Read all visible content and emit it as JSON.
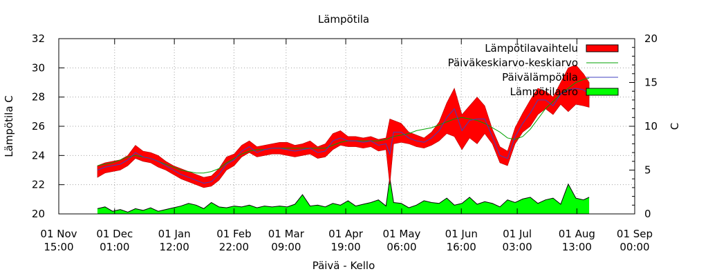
{
  "chart_data": {
    "type": "area",
    "title": "Lämpötila",
    "xlabel": "Päivä - Kello",
    "ylabel": "Lämpötila C",
    "y2label": "C",
    "grid": true,
    "legend": "top-right",
    "ylim": [
      20,
      32
    ],
    "y2lim": [
      0,
      20
    ],
    "xlim": [
      "2017-11-01 15:00",
      "2018-09-01 00:00"
    ],
    "y_ticks": [
      "20",
      "22",
      "24",
      "26",
      "28",
      "30",
      "32"
    ],
    "y2_ticks": [
      "0",
      "5",
      "10",
      "15",
      "20"
    ],
    "x_ticks": [
      {
        "date": "2017-11-01 15:00",
        "line1": "01 Nov",
        "line2": "15:00"
      },
      {
        "date": "2017-12-01 01:00",
        "line1": "01 Dec",
        "line2": "01:00"
      },
      {
        "date": "2018-01-01 12:00",
        "line1": "01 Jan",
        "line2": "12:00"
      },
      {
        "date": "2018-02-01 22:00",
        "line1": "01 Feb",
        "line2": "22:00"
      },
      {
        "date": "2018-03-01 09:00",
        "line1": "01 Mar",
        "line2": "09:00"
      },
      {
        "date": "2018-04-01 19:00",
        "line1": "01 Apr",
        "line2": "19:00"
      },
      {
        "date": "2018-05-01 06:00",
        "line1": "01 May",
        "line2": "06:00"
      },
      {
        "date": "2018-06-01 16:00",
        "line1": "01 Jun",
        "line2": "16:00"
      },
      {
        "date": "2018-07-01 03:00",
        "line1": "01 Jul",
        "line2": "03:00"
      },
      {
        "date": "2018-08-01 13:00",
        "line1": "01 Aug",
        "line2": "13:00"
      },
      {
        "date": "2018-09-01 00:00",
        "line1": "01 Sep",
        "line2": "00:00"
      }
    ],
    "series": [
      {
        "name": "Lämpötilavaihtelu",
        "kind": "band",
        "axis": "y",
        "color": "#ff0000"
      },
      {
        "name": "Päiväkeskiarvo-keskiarvo",
        "kind": "line",
        "axis": "y",
        "color": "#00a000"
      },
      {
        "name": "Päivälämpötila",
        "kind": "line",
        "axis": "y",
        "color": "#4040c0"
      },
      {
        "name": "Lämpötilaero",
        "kind": "area",
        "axis": "y2",
        "color": "#00ff00"
      }
    ],
    "x": [
      "2017-11-22",
      "2017-11-26",
      "2017-11-30",
      "2017-12-04",
      "2017-12-08",
      "2017-12-12",
      "2017-12-16",
      "2017-12-20",
      "2017-12-24",
      "2017-12-28",
      "2018-01-01",
      "2018-01-05",
      "2018-01-09",
      "2018-01-13",
      "2018-01-17",
      "2018-01-21",
      "2018-01-25",
      "2018-01-29",
      "2018-02-02",
      "2018-02-06",
      "2018-02-10",
      "2018-02-14",
      "2018-02-18",
      "2018-02-22",
      "2018-02-26",
      "2018-03-02",
      "2018-03-06",
      "2018-03-10",
      "2018-03-14",
      "2018-03-18",
      "2018-03-22",
      "2018-03-26",
      "2018-03-30",
      "2018-04-03",
      "2018-04-07",
      "2018-04-11",
      "2018-04-15",
      "2018-04-19",
      "2018-04-23",
      "2018-04-25",
      "2018-04-27",
      "2018-05-01",
      "2018-05-05",
      "2018-05-09",
      "2018-05-13",
      "2018-05-17",
      "2018-05-21",
      "2018-05-25",
      "2018-05-29",
      "2018-06-02",
      "2018-06-06",
      "2018-06-10",
      "2018-06-14",
      "2018-06-18",
      "2018-06-22",
      "2018-06-26",
      "2018-06-30",
      "2018-07-04",
      "2018-07-08",
      "2018-07-12",
      "2018-07-16",
      "2018-07-20",
      "2018-07-24",
      "2018-07-28",
      "2018-08-01",
      "2018-08-05",
      "2018-08-08"
    ],
    "range_low": [
      22.5,
      22.8,
      22.9,
      23.0,
      23.3,
      23.8,
      23.6,
      23.5,
      23.2,
      23.0,
      22.7,
      22.4,
      22.2,
      22.0,
      21.8,
      21.9,
      22.3,
      23.0,
      23.3,
      23.9,
      24.2,
      23.9,
      24.0,
      24.1,
      24.1,
      24.0,
      23.9,
      24.0,
      24.1,
      23.8,
      23.9,
      24.4,
      24.7,
      24.6,
      24.6,
      24.5,
      24.6,
      24.3,
      24.4,
      22.0,
      24.8,
      24.9,
      24.8,
      24.6,
      24.5,
      24.7,
      25.0,
      25.5,
      25.3,
      24.4,
      25.2,
      24.8,
      25.5,
      24.8,
      23.5,
      23.3,
      24.8,
      25.6,
      26.0,
      26.8,
      27.2,
      26.8,
      27.5,
      27.0,
      27.5,
      27.4,
      27.3
    ],
    "range_high": [
      23.3,
      23.5,
      23.6,
      23.7,
      24.0,
      24.7,
      24.3,
      24.2,
      24.0,
      23.6,
      23.3,
      23.1,
      22.9,
      22.7,
      22.5,
      22.6,
      23.1,
      23.9,
      24.1,
      24.7,
      25.0,
      24.6,
      24.7,
      24.8,
      24.9,
      24.9,
      24.7,
      24.8,
      25.0,
      24.6,
      24.8,
      25.5,
      25.7,
      25.3,
      25.3,
      25.2,
      25.3,
      25.1,
      25.2,
      26.5,
      26.4,
      26.2,
      25.6,
      25.4,
      25.2,
      25.6,
      26.3,
      27.6,
      28.6,
      26.8,
      27.4,
      28.0,
      27.4,
      25.8,
      24.6,
      24.3,
      25.9,
      26.9,
      27.8,
      28.6,
      28.4,
      28.0,
      29.0,
      30.0,
      30.2,
      29.6,
      29.0
    ],
    "daily_temp": [
      23.0,
      23.2,
      23.3,
      23.4,
      23.7,
      24.2,
      23.9,
      23.8,
      23.6,
      23.3,
      23.0,
      22.7,
      22.5,
      22.3,
      22.1,
      22.2,
      22.7,
      23.4,
      23.7,
      24.3,
      24.6,
      24.2,
      24.4,
      24.5,
      24.5,
      24.4,
      24.3,
      24.4,
      24.5,
      24.2,
      24.3,
      25.0,
      25.2,
      25.0,
      25.0,
      24.9,
      25.0,
      24.7,
      24.8,
      24.1,
      25.6,
      25.6,
      25.2,
      25.0,
      24.9,
      25.2,
      25.7,
      26.6,
      27.2,
      25.7,
      26.4,
      26.5,
      26.5,
      25.3,
      24.0,
      23.8,
      25.3,
      26.2,
      26.9,
      27.8,
      27.8,
      27.4,
      28.2,
      28.5,
      28.6,
      28.5,
      28.2
    ],
    "avg_of_daily_avg": [
      23.3,
      23.4,
      23.5,
      23.7,
      23.9,
      24.0,
      23.9,
      23.8,
      23.6,
      23.4,
      23.2,
      23.0,
      22.9,
      22.8,
      22.8,
      22.9,
      23.1,
      23.5,
      23.8,
      24.1,
      24.3,
      24.4,
      24.4,
      24.5,
      24.5,
      24.5,
      24.5,
      24.5,
      24.5,
      24.5,
      24.5,
      24.7,
      24.9,
      25.0,
      25.0,
      25.0,
      25.0,
      25.0,
      25.1,
      25.2,
      25.3,
      25.4,
      25.5,
      25.7,
      25.8,
      25.9,
      26.1,
      26.3,
      26.5,
      26.6,
      26.5,
      26.4,
      26.2,
      25.9,
      25.6,
      25.2,
      25.1,
      25.3,
      25.8,
      26.5,
      27.2,
      27.7,
      28.2,
      28.6,
      29.0,
      29.2,
      29.3
    ],
    "temp_difference": [
      0.6,
      0.8,
      0.3,
      0.5,
      0.2,
      0.6,
      0.4,
      0.7,
      0.3,
      0.5,
      0.7,
      0.9,
      1.2,
      1.0,
      0.6,
      1.3,
      0.8,
      0.7,
      0.9,
      0.8,
      1.0,
      0.7,
      0.9,
      0.8,
      0.9,
      0.8,
      1.1,
      2.2,
      0.9,
      1.0,
      0.8,
      1.2,
      1.0,
      1.5,
      0.9,
      1.1,
      1.3,
      1.6,
      0.9,
      4.1,
      1.3,
      1.2,
      0.7,
      1.0,
      1.5,
      1.3,
      1.2,
      1.8,
      1.0,
      1.2,
      1.9,
      1.1,
      1.4,
      1.2,
      0.8,
      1.6,
      1.3,
      1.7,
      1.9,
      1.2,
      1.6,
      1.8,
      1.1,
      3.4,
      1.8,
      1.6,
      1.9
    ]
  }
}
